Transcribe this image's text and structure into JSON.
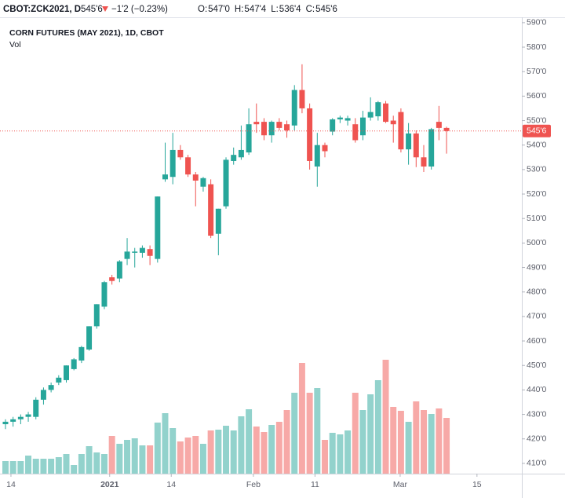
{
  "chart_data": {
    "type": "candlestick",
    "header": {
      "symbol": "CBOT:ZCK2021, D",
      "price": "545'6",
      "change": "−1'2 (−0.23%)",
      "ohlc": [
        {
          "key": "O:",
          "value": "547'0"
        },
        {
          "key": "H:",
          "value": "547'4"
        },
        {
          "key": "L:",
          "value": "536'4"
        },
        {
          "key": "C:",
          "value": "545'6"
        }
      ]
    },
    "title": "CORN FUTURES (MAY 2021), 1D, CBOT",
    "volume_label": "Vol",
    "up_color": "#26a69a",
    "down_color": "#ef5350",
    "last_price": 545.75,
    "last_price_label": "545'6",
    "open": [
      426,
      427,
      428,
      429,
      429,
      436,
      440,
      443,
      444,
      448.5,
      452,
      456.5,
      466,
      474,
      486,
      485.5,
      493.5,
      496,
      496,
      497.5,
      493.5,
      526,
      527,
      538,
      535,
      528,
      523,
      524,
      503.75,
      515,
      533.5,
      535,
      537,
      549.5,
      549.5,
      544,
      549.5,
      548.5,
      548,
      562.5,
      555,
      531.25,
      540,
      545.5,
      550.5,
      550,
      548.5,
      544,
      551.25,
      551.75,
      557,
      550,
      553.5,
      538.25,
      544.75,
      535,
      531.25,
      549.5,
      547
    ],
    "high": [
      428,
      429,
      430,
      431,
      437,
      441,
      443,
      446,
      450,
      453,
      458,
      466,
      475,
      484.5,
      487,
      493,
      502,
      498,
      499,
      499,
      519,
      541,
      545,
      540,
      536,
      529,
      527,
      526,
      514,
      535,
      539,
      548,
      555,
      557,
      551,
      550,
      551,
      550,
      564.5,
      573,
      557,
      545,
      541,
      551,
      552,
      552,
      551,
      554,
      559.5,
      558,
      558,
      552,
      555,
      549,
      546,
      540,
      547,
      556,
      547.5
    ],
    "low": [
      424,
      425,
      426,
      427,
      428,
      434,
      439,
      442,
      443,
      448,
      451,
      456,
      465,
      473,
      483,
      484,
      491,
      490,
      494,
      491,
      492,
      525,
      524,
      534,
      527,
      515,
      521,
      502,
      495,
      514,
      532,
      534,
      536,
      545,
      542,
      541,
      546,
      543,
      546,
      553,
      530,
      523,
      535,
      544,
      549,
      548,
      541,
      542,
      550,
      550,
      549,
      541,
      537,
      532,
      531,
      529,
      530,
      542,
      536.5
    ],
    "close": [
      427,
      428,
      429,
      430,
      436,
      440,
      442,
      445,
      450,
      452.5,
      457.5,
      466,
      475,
      484,
      484.5,
      492.5,
      496.5,
      496.5,
      498,
      494.75,
      519,
      528,
      538,
      535,
      528,
      525.5,
      526.5,
      503,
      514,
      534,
      536,
      538,
      548.5,
      548.5,
      544,
      549.5,
      547,
      546,
      562.5,
      555,
      533.5,
      540,
      537.5,
      550.5,
      551.25,
      551,
      542,
      551.25,
      553.5,
      557.5,
      549.5,
      548.5,
      538.25,
      544.75,
      535,
      531.25,
      546.5,
      547,
      545.75
    ],
    "volume": [
      16,
      16,
      16,
      23,
      19,
      19,
      19,
      21,
      25,
      11,
      25,
      35,
      27,
      25,
      48,
      38,
      43,
      45,
      36,
      36,
      65,
      77,
      58,
      41,
      46,
      48,
      38,
      55,
      56,
      61,
      55,
      73,
      82,
      60,
      53,
      62,
      66,
      81,
      103,
      141,
      103,
      109,
      43,
      52,
      50,
      55,
      103,
      81,
      101,
      119,
      145,
      85,
      80,
      66,
      92,
      81,
      76,
      83,
      71
    ],
    "xlim": [
      -0.72,
      67.9
    ],
    "xticks": [
      {
        "value": 0.72,
        "label": "14"
      },
      {
        "value": 13.7,
        "label": "2021"
      },
      {
        "value": 21.8,
        "label": "14"
      },
      {
        "value": 32.6,
        "label": "Feb"
      },
      {
        "value": 40.7,
        "label": "11"
      },
      {
        "value": 51.9,
        "label": "Mar"
      },
      {
        "value": 62,
        "label": "15"
      }
    ],
    "ylim": [
      405.8,
      592.2
    ],
    "yticks": [
      {
        "value": 410,
        "label": "410'0"
      },
      {
        "value": 420,
        "label": "420'0"
      },
      {
        "value": 430,
        "label": "430'0"
      },
      {
        "value": 440,
        "label": "440'0"
      },
      {
        "value": 450,
        "label": "450'0"
      },
      {
        "value": 460,
        "label": "460'0"
      },
      {
        "value": 470,
        "label": "470'0"
      },
      {
        "value": 480,
        "label": "480'0"
      },
      {
        "value": 490,
        "label": "490'0"
      },
      {
        "value": 500,
        "label": "500'0"
      },
      {
        "value": 510,
        "label": "510'0"
      },
      {
        "value": 520,
        "label": "520'0"
      },
      {
        "value": 530,
        "label": "530'0"
      },
      {
        "value": 540,
        "label": "540'0"
      },
      {
        "value": 550,
        "label": "550'0"
      },
      {
        "value": 560,
        "label": "560'0"
      },
      {
        "value": 570,
        "label": "570'0"
      },
      {
        "value": 580,
        "label": "580'0"
      },
      {
        "value": 590,
        "label": "590'0"
      }
    ]
  }
}
